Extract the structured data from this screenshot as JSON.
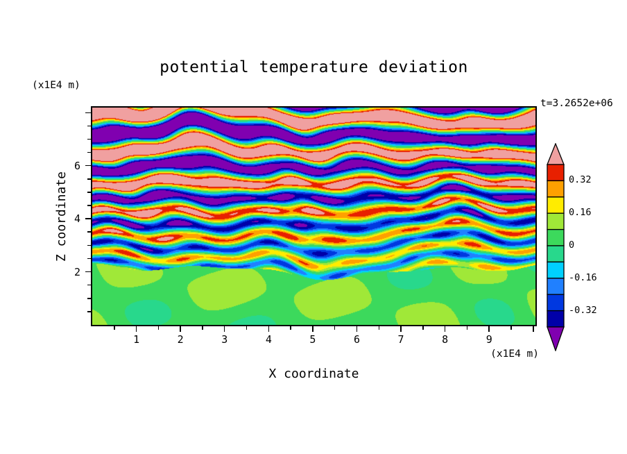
{
  "chart_data": {
    "type": "heatmap",
    "title": "potential temperature deviation",
    "time_annotation": "t=3.2652e+06",
    "xlabel": "X coordinate",
    "x_units": "(x1E4 m)",
    "ylabel": "Z coordinate",
    "y_units": "(x1E4 m)",
    "x_range": [
      0,
      10.05
    ],
    "z_range": [
      0,
      8.19
    ],
    "x_tick_labels": [
      "1",
      "2",
      "3",
      "4",
      "5",
      "6",
      "7",
      "8",
      "9"
    ],
    "z_tick_labels": [
      "2",
      "4",
      "6"
    ],
    "contour_levels": [
      -0.4,
      -0.32,
      -0.24,
      -0.16,
      -0.08,
      0,
      0.08,
      0.16,
      0.24,
      0.32,
      0.4
    ],
    "palette_low_to_high": [
      "#8000b0",
      "#0000a8",
      "#0038e0",
      "#2080ff",
      "#00d0ff",
      "#28d88c",
      "#3cd95c",
      "#a0e838",
      "#ffec00",
      "#ffa000",
      "#e82000",
      "#f0a0a0"
    ],
    "field_description": "Vertical cross-section of potential temperature deviation in a stratified shear flow. Below z ~ 2 (x1E4 m) there is a quiescent layer of near-zero values (solid green with yellow-green patches). Above it, turbulent braided horizontal stripes cycle through the full color scale; stripe amplitude grows with height and saturates beyond +/-0.4, producing broad salmon-pink (positive) and purple (negative) bands with thin red/orange/yellow/cyan/blue transition filaments in the upper half of the domain.",
    "field_model": {
      "interface_z": 2.05,
      "quiescent_base": 0.055,
      "quiescent_amp": 0.05,
      "quiescent_amp2": 0.04,
      "stripe_wavelength": 0.62,
      "wavelength_growth": 0.06,
      "amp_base": 0.24,
      "amp_growth": 0.08,
      "amp_max": 0.72,
      "wobble1": 0.2,
      "wobble2": 0.12,
      "wobble3": 0.06,
      "fine_amp": 0.08
    }
  },
  "colorbar": {
    "tick_labels": [
      "0.32",
      "0.16",
      "0",
      "-0.16",
      "-0.32"
    ]
  }
}
